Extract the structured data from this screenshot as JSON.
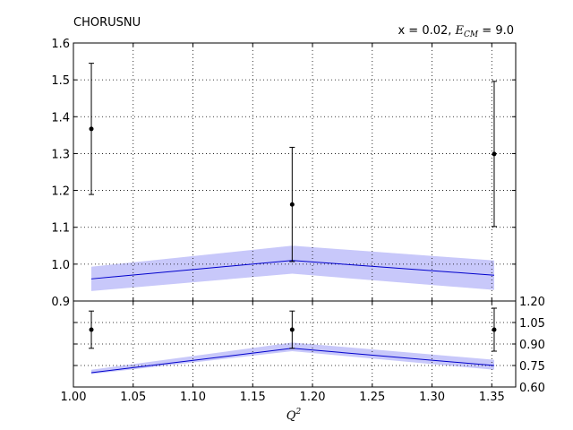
{
  "chart_data": {
    "type": "line",
    "title": "CHORUSNU",
    "annotation": {
      "prefix": "x = 0.02, ",
      "symbol": "E",
      "subscript": "CM",
      "suffix": " = 9.0"
    },
    "xlabel": "Q",
    "xlabel_sup": "2",
    "xlim": [
      1.0,
      1.37
    ],
    "x_ticks": [
      1.0,
      1.05,
      1.1,
      1.15,
      1.2,
      1.25,
      1.3,
      1.35
    ],
    "x_tick_labels": [
      "1.00",
      "1.05",
      "1.10",
      "1.15",
      "1.20",
      "1.25",
      "1.30",
      "1.35"
    ],
    "grid": true,
    "colors": {
      "data": "#000000",
      "theory_line": "#0000cc",
      "theory_band": "#c8c8fa"
    },
    "panels": [
      {
        "name": "main",
        "ylim": [
          0.9,
          1.6
        ],
        "y_ticks": [
          0.9,
          1.0,
          1.1,
          1.2,
          1.3,
          1.4,
          1.5,
          1.6
        ],
        "y_tick_labels": [
          "0.9",
          "1.0",
          "1.1",
          "1.2",
          "1.3",
          "1.4",
          "1.5",
          "1.6"
        ],
        "y_axis_side": "left",
        "data": {
          "x": [
            1.015,
            1.183,
            1.352
          ],
          "y": [
            1.367,
            1.162,
            1.299
          ],
          "yerr": [
            0.178,
            0.155,
            0.197
          ]
        },
        "theory": {
          "x": [
            1.015,
            1.183,
            1.352
          ],
          "central": [
            0.96,
            1.01,
            0.97
          ],
          "lower": [
            0.927,
            0.974,
            0.93
          ],
          "upper": [
            0.993,
            1.05,
            1.01
          ]
        }
      },
      {
        "name": "ratio",
        "ylim": [
          0.6,
          1.2
        ],
        "y_ticks": [
          0.6,
          0.75,
          0.9,
          1.05,
          1.2
        ],
        "y_tick_labels": [
          "0.60",
          "0.75",
          "0.90",
          "1.05",
          "1.20"
        ],
        "y_axis_side": "right",
        "data": {
          "x": [
            1.015,
            1.183,
            1.352
          ],
          "y": [
            1.0,
            1.0,
            1.0
          ],
          "yerr": [
            0.13,
            0.13,
            0.15
          ]
        },
        "theory": {
          "x": [
            1.015,
            1.183,
            1.352
          ],
          "central": [
            0.7,
            0.87,
            0.75
          ],
          "lower": [
            0.69,
            0.85,
            0.72
          ],
          "upper": [
            0.72,
            0.91,
            0.79
          ]
        }
      }
    ]
  }
}
